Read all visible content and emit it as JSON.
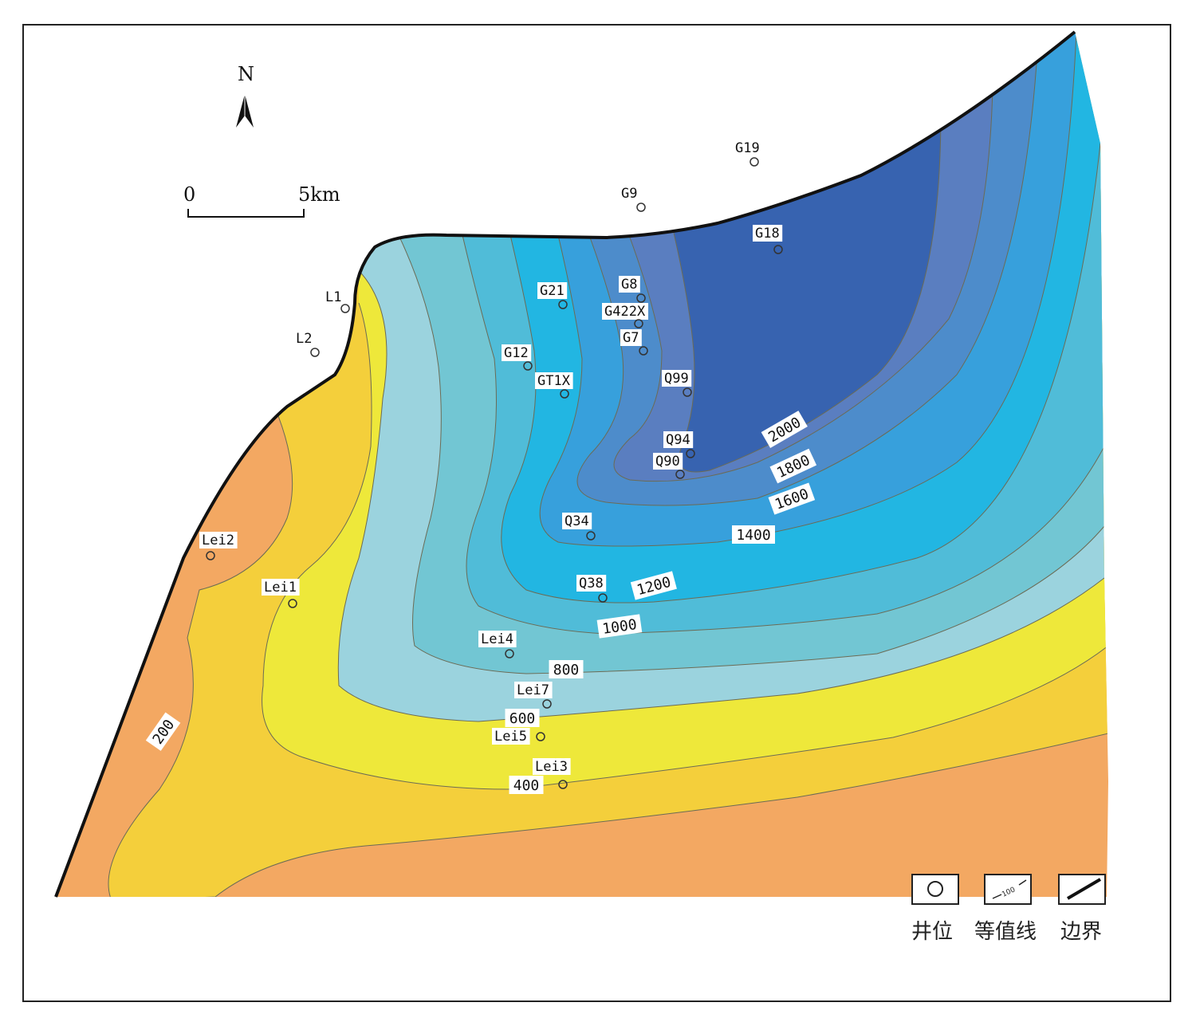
{
  "north_label": "N",
  "scale": {
    "start": "0",
    "end": "5km"
  },
  "colors": {
    "c0": "#f3a862",
    "c200": "#f4cf3b",
    "c400": "#eee83a",
    "c600": "#9bd3de",
    "c800": "#72c6d3",
    "c1000": "#50bcd8",
    "c1200": "#22b6e2",
    "c1400": "#37a0dc",
    "c1600": "#4d8ccb",
    "c1800": "#5a7ec0",
    "c2000": "#3763b0"
  },
  "contour_labels": [
    "200",
    "400",
    "600",
    "800",
    "1000",
    "1200",
    "1400",
    "1600",
    "1800",
    "2000"
  ],
  "wells": [
    {
      "name": "G19"
    },
    {
      "name": "G9"
    },
    {
      "name": "G18"
    },
    {
      "name": "G21"
    },
    {
      "name": "G8"
    },
    {
      "name": "G422X"
    },
    {
      "name": "G7"
    },
    {
      "name": "L1"
    },
    {
      "name": "L2"
    },
    {
      "name": "G12"
    },
    {
      "name": "GT1X"
    },
    {
      "name": "Q99"
    },
    {
      "name": "Q94"
    },
    {
      "name": "Q90"
    },
    {
      "name": "Q34"
    },
    {
      "name": "Lei2"
    },
    {
      "name": "Lei1"
    },
    {
      "name": "Q38"
    },
    {
      "name": "Lei4"
    },
    {
      "name": "Lei7"
    },
    {
      "name": "Lei5"
    },
    {
      "name": "Lei3"
    }
  ],
  "legend": {
    "well": "井位",
    "contour": "等值线",
    "contour_icon_value": "100",
    "boundary": "边界"
  }
}
